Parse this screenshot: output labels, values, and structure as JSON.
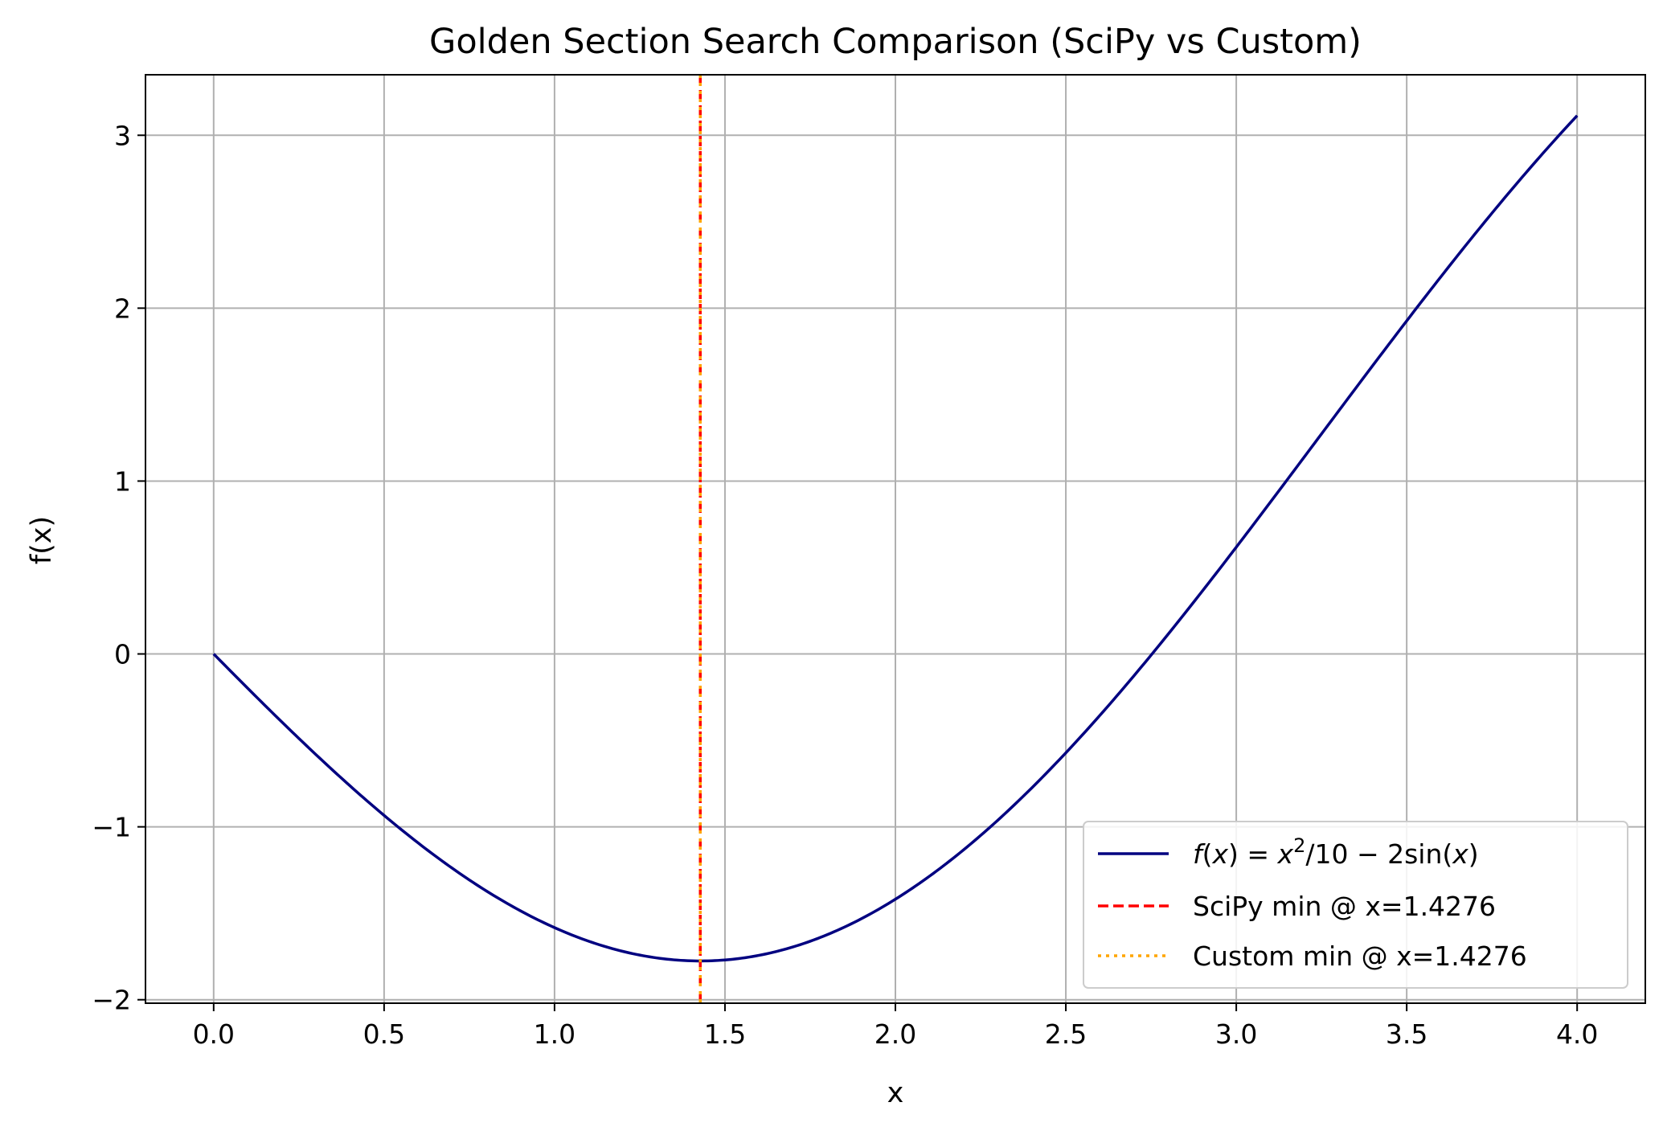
{
  "chart_data": {
    "type": "line",
    "title": "Golden Section Search Comparison (SciPy vs Custom)",
    "xlabel": "x",
    "ylabel": "f(x)",
    "xlim": [
      -0.2,
      4.2
    ],
    "ylim": [
      -2.02,
      3.35
    ],
    "grid": true,
    "legend_position": "lower-right",
    "x_ticks": [
      0.0,
      0.5,
      1.0,
      1.5,
      2.0,
      2.5,
      3.0,
      3.5,
      4.0
    ],
    "x_tick_labels": [
      "0.0",
      "0.5",
      "1.0",
      "1.5",
      "2.0",
      "2.5",
      "3.0",
      "3.5",
      "4.0"
    ],
    "y_ticks": [
      -2,
      -1,
      0,
      1,
      2,
      3
    ],
    "y_tick_labels": [
      "−2",
      "−1",
      "0",
      "1",
      "2",
      "3"
    ],
    "series": [
      {
        "name": "f(x) = x²/10 − 2sin(x)",
        "style": "solid",
        "color": "#000080",
        "x": [
          0.0,
          0.25,
          0.5,
          0.75,
          1.0,
          1.25,
          1.5,
          1.75,
          2.0,
          2.25,
          2.5,
          2.75,
          3.0,
          3.25,
          3.5,
          3.75,
          4.0
        ],
        "y": [
          0.0,
          -0.488,
          -0.934,
          -1.307,
          -1.583,
          -1.742,
          -1.77,
          -1.662,
          -1.419,
          -1.05,
          -0.572,
          -0.005,
          0.618,
          1.272,
          1.926,
          2.55,
          3.114
        ]
      },
      {
        "name": "SciPy min @ x=1.4276",
        "style": "dashed",
        "color": "#ff0000",
        "vline_x": 1.4276
      },
      {
        "name": "Custom min @ x=1.4276",
        "style": "dotted",
        "color": "#ffa500",
        "vline_x": 1.4276
      }
    ],
    "legend": {
      "f_prefix": "f",
      "x_var": "x",
      "equals": " = ",
      "x_base": "x",
      "sup": "2",
      "mid": "/10 − 2sin(",
      "x_var2": "x",
      "close": ")",
      "scipy_label": "SciPy min @ x=1.4276",
      "custom_label": "Custom min @ x=1.4276"
    },
    "colors": {
      "curve": "#000080",
      "scipy": "#ff0000",
      "custom": "#ffa500",
      "grid": "#b0b0b0",
      "axes": "#000000",
      "legend_border": "#cccccc"
    }
  }
}
